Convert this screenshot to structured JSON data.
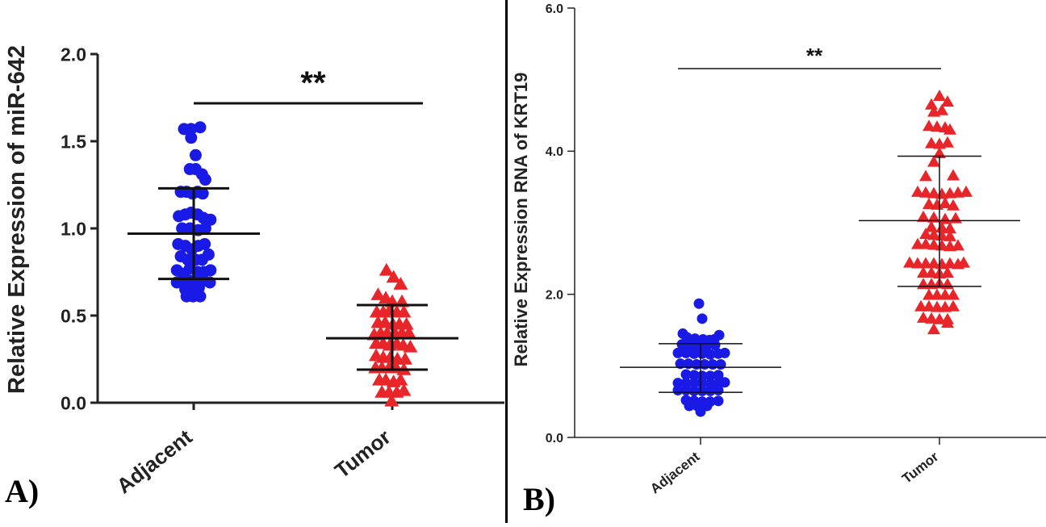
{
  "colors": {
    "adjacent": "#1a1ae6",
    "tumor": "#e8262a",
    "axis": "#222222"
  },
  "chart_data": [
    {
      "type": "scatter",
      "panel_label": "A)",
      "ylabel": "Relative Expression of miR-642",
      "ylim": [
        0,
        2.0
      ],
      "yticks": [
        "0.0",
        "0.5",
        "1.0",
        "1.5",
        "2.0"
      ],
      "categories": [
        "Adjacent",
        "Tumor"
      ],
      "significance": "**",
      "series": [
        {
          "name": "Adjacent",
          "marker": "circle",
          "mean": 0.97,
          "sd_low": 0.71,
          "sd_high": 1.23,
          "points": [
            [
              -0.15,
              1.57
            ],
            [
              -0.04,
              1.57
            ],
            [
              0.1,
              1.58
            ],
            [
              -0.04,
              1.52
            ],
            [
              0.03,
              1.42
            ],
            [
              -0.06,
              1.34
            ],
            [
              0.03,
              1.34
            ],
            [
              0.13,
              1.31
            ],
            [
              0.18,
              1.28
            ],
            [
              -0.2,
              1.21
            ],
            [
              -0.11,
              1.21
            ],
            [
              -0.02,
              1.2
            ],
            [
              0.06,
              1.21
            ],
            [
              0.14,
              1.2
            ],
            [
              -0.23,
              1.07
            ],
            [
              -0.13,
              1.08
            ],
            [
              -0.04,
              1.09
            ],
            [
              0.06,
              1.08
            ],
            [
              0.15,
              1.06
            ],
            [
              0.26,
              1.05
            ],
            [
              -0.18,
              1.0
            ],
            [
              -0.06,
              1.0
            ],
            [
              0.07,
              0.99
            ],
            [
              0.18,
              1.0
            ],
            [
              -0.24,
              0.91
            ],
            [
              -0.13,
              0.9
            ],
            [
              -0.03,
              0.88
            ],
            [
              0.07,
              0.9
            ],
            [
              0.17,
              0.91
            ],
            [
              -0.2,
              0.84
            ],
            [
              -0.09,
              0.82
            ],
            [
              0.03,
              0.82
            ],
            [
              0.13,
              0.82
            ],
            [
              0.23,
              0.85
            ],
            [
              -0.26,
              0.76
            ],
            [
              -0.16,
              0.74
            ],
            [
              -0.06,
              0.77
            ],
            [
              0.06,
              0.75
            ],
            [
              0.16,
              0.75
            ],
            [
              0.26,
              0.76
            ],
            [
              -0.26,
              0.69
            ],
            [
              -0.16,
              0.69
            ],
            [
              -0.06,
              0.7
            ],
            [
              0.05,
              0.69
            ],
            [
              0.15,
              0.7
            ],
            [
              0.25,
              0.69
            ],
            [
              -0.13,
              0.65
            ],
            [
              -0.02,
              0.65
            ],
            [
              0.08,
              0.66
            ],
            [
              -0.11,
              0.61
            ],
            [
              -0.01,
              0.61
            ],
            [
              0.1,
              0.61
            ]
          ]
        },
        {
          "name": "Tumor",
          "marker": "triangle",
          "mean": 0.37,
          "sd_low": 0.19,
          "sd_high": 0.56,
          "points": [
            [
              -0.09,
              0.76
            ],
            [
              0.02,
              0.72
            ],
            [
              0.13,
              0.68
            ],
            [
              -0.22,
              0.62
            ],
            [
              -0.1,
              0.6
            ],
            [
              0.0,
              0.58
            ],
            [
              0.15,
              0.58
            ],
            [
              -0.24,
              0.52
            ],
            [
              -0.14,
              0.52
            ],
            [
              -0.04,
              0.53
            ],
            [
              0.07,
              0.52
            ],
            [
              0.18,
              0.52
            ],
            [
              -0.22,
              0.46
            ],
            [
              -0.11,
              0.46
            ],
            [
              0.01,
              0.45
            ],
            [
              0.11,
              0.45
            ],
            [
              0.22,
              0.45
            ],
            [
              -0.28,
              0.39
            ],
            [
              -0.18,
              0.4
            ],
            [
              -0.08,
              0.4
            ],
            [
              0.04,
              0.4
            ],
            [
              0.15,
              0.4
            ],
            [
              0.26,
              0.4
            ],
            [
              -0.25,
              0.34
            ],
            [
              -0.14,
              0.34
            ],
            [
              -0.04,
              0.33
            ],
            [
              0.07,
              0.34
            ],
            [
              0.17,
              0.33
            ],
            [
              0.28,
              0.32
            ],
            [
              -0.25,
              0.27
            ],
            [
              -0.14,
              0.26
            ],
            [
              -0.03,
              0.26
            ],
            [
              0.08,
              0.25
            ],
            [
              0.2,
              0.25
            ],
            [
              -0.26,
              0.2
            ],
            [
              -0.16,
              0.2
            ],
            [
              -0.05,
              0.2
            ],
            [
              0.06,
              0.2
            ],
            [
              0.18,
              0.19
            ],
            [
              -0.2,
              0.13
            ],
            [
              -0.1,
              0.13
            ],
            [
              0.02,
              0.12
            ],
            [
              0.13,
              0.13
            ],
            [
              -0.16,
              0.06
            ],
            [
              -0.05,
              0.06
            ],
            [
              0.07,
              0.06
            ],
            [
              0.18,
              0.07
            ],
            [
              -0.01,
              0.01
            ]
          ]
        }
      ]
    },
    {
      "type": "scatter",
      "panel_label": "B)",
      "ylabel": "Relative Expression RNA of KRT19",
      "ylim": [
        0,
        6.0
      ],
      "yticks": [
        "0.0",
        "2.0",
        "4.0",
        "6.0"
      ],
      "categories": [
        "Adjacent",
        "Tumor"
      ],
      "significance": "**",
      "series": [
        {
          "name": "Adjacent",
          "marker": "circle",
          "mean": 0.98,
          "sd_low": 0.63,
          "sd_high": 1.31,
          "points": [
            [
              -0.02,
              1.87
            ],
            [
              0.02,
              1.66
            ],
            [
              -0.22,
              1.45
            ],
            [
              0.23,
              1.43
            ],
            [
              -0.17,
              1.4
            ],
            [
              -0.07,
              1.38
            ],
            [
              0.03,
              1.37
            ],
            [
              0.11,
              1.36
            ],
            [
              0.17,
              1.37
            ],
            [
              -0.23,
              1.3
            ],
            [
              -0.13,
              1.28
            ],
            [
              -0.04,
              1.27
            ],
            [
              0.07,
              1.27
            ],
            [
              0.18,
              1.29
            ],
            [
              -0.28,
              1.18
            ],
            [
              -0.18,
              1.18
            ],
            [
              -0.08,
              1.17
            ],
            [
              0.02,
              1.17
            ],
            [
              0.12,
              1.16
            ],
            [
              0.22,
              1.17
            ],
            [
              0.3,
              1.18
            ],
            [
              -0.25,
              1.03
            ],
            [
              -0.15,
              1.03
            ],
            [
              -0.05,
              1.02
            ],
            [
              0.05,
              1.02
            ],
            [
              0.15,
              1.02
            ],
            [
              0.25,
              1.02
            ],
            [
              -0.18,
              0.88
            ],
            [
              -0.08,
              0.87
            ],
            [
              0.02,
              0.86
            ],
            [
              0.12,
              0.86
            ],
            [
              0.22,
              0.87
            ],
            [
              -0.28,
              0.76
            ],
            [
              -0.18,
              0.76
            ],
            [
              -0.08,
              0.76
            ],
            [
              0.02,
              0.76
            ],
            [
              0.12,
              0.75
            ],
            [
              0.22,
              0.76
            ],
            [
              0.3,
              0.77
            ],
            [
              -0.28,
              0.66
            ],
            [
              -0.18,
              0.66
            ],
            [
              -0.08,
              0.65
            ],
            [
              0.02,
              0.65
            ],
            [
              0.12,
              0.65
            ],
            [
              0.22,
              0.66
            ],
            [
              -0.18,
              0.52
            ],
            [
              -0.08,
              0.51
            ],
            [
              0.02,
              0.5
            ],
            [
              0.12,
              0.5
            ],
            [
              0.22,
              0.51
            ],
            [
              -0.14,
              0.44
            ],
            [
              -0.04,
              0.44
            ],
            [
              0.08,
              0.44
            ],
            [
              0.0,
              0.36
            ]
          ]
        },
        {
          "name": "Tumor",
          "marker": "triangle",
          "mean": 3.03,
          "sd_low": 2.11,
          "sd_high": 3.93,
          "points": [
            [
              0.0,
              4.77
            ],
            [
              0.1,
              4.69
            ],
            [
              -0.1,
              4.65
            ],
            [
              -0.07,
              4.55
            ],
            [
              0.03,
              4.57
            ],
            [
              -0.13,
              4.35
            ],
            [
              -0.03,
              4.34
            ],
            [
              0.07,
              4.33
            ],
            [
              0.13,
              4.3
            ],
            [
              -0.1,
              4.11
            ],
            [
              0.0,
              4.1
            ],
            [
              0.1,
              4.12
            ],
            [
              0.0,
              3.97
            ],
            [
              -0.07,
              3.85
            ],
            [
              -0.17,
              3.65
            ],
            [
              0.17,
              3.66
            ],
            [
              -0.27,
              3.43
            ],
            [
              -0.17,
              3.42
            ],
            [
              -0.07,
              3.41
            ],
            [
              0.03,
              3.4
            ],
            [
              0.13,
              3.41
            ],
            [
              0.23,
              3.42
            ],
            [
              0.33,
              3.43
            ],
            [
              -0.13,
              3.26
            ],
            [
              -0.03,
              3.25
            ],
            [
              0.07,
              3.27
            ],
            [
              0.17,
              3.24
            ],
            [
              -0.2,
              3.08
            ],
            [
              -0.07,
              3.07
            ],
            [
              0.07,
              3.05
            ],
            [
              0.2,
              3.06
            ],
            [
              -0.1,
              2.94
            ],
            [
              0.03,
              2.93
            ],
            [
              0.13,
              2.92
            ],
            [
              -0.17,
              2.84
            ],
            [
              -0.07,
              2.83
            ],
            [
              0.03,
              2.82
            ],
            [
              0.13,
              2.81
            ],
            [
              -0.27,
              2.7
            ],
            [
              -0.17,
              2.7
            ],
            [
              -0.07,
              2.69
            ],
            [
              0.03,
              2.68
            ],
            [
              0.13,
              2.67
            ],
            [
              0.23,
              2.68
            ],
            [
              -0.37,
              2.44
            ],
            [
              -0.27,
              2.43
            ],
            [
              -0.17,
              2.43
            ],
            [
              -0.07,
              2.43
            ],
            [
              0.03,
              2.42
            ],
            [
              0.13,
              2.43
            ],
            [
              0.23,
              2.42
            ],
            [
              0.3,
              2.44
            ],
            [
              -0.2,
              2.3
            ],
            [
              -0.1,
              2.3
            ],
            [
              0.0,
              2.29
            ],
            [
              0.1,
              2.3
            ],
            [
              -0.2,
              2.14
            ],
            [
              -0.1,
              2.14
            ],
            [
              0.0,
              2.15
            ],
            [
              0.1,
              2.14
            ],
            [
              -0.13,
              1.99
            ],
            [
              -0.03,
              1.99
            ],
            [
              0.07,
              1.99
            ],
            [
              0.17,
              1.99
            ],
            [
              -0.23,
              1.83
            ],
            [
              -0.13,
              1.83
            ],
            [
              -0.03,
              1.82
            ],
            [
              0.07,
              1.82
            ],
            [
              0.17,
              1.83
            ],
            [
              -0.2,
              1.67
            ],
            [
              -0.1,
              1.66
            ],
            [
              0.0,
              1.65
            ],
            [
              0.1,
              1.65
            ],
            [
              -0.07,
              1.51
            ],
            [
              0.1,
              1.6
            ]
          ]
        }
      ]
    }
  ]
}
